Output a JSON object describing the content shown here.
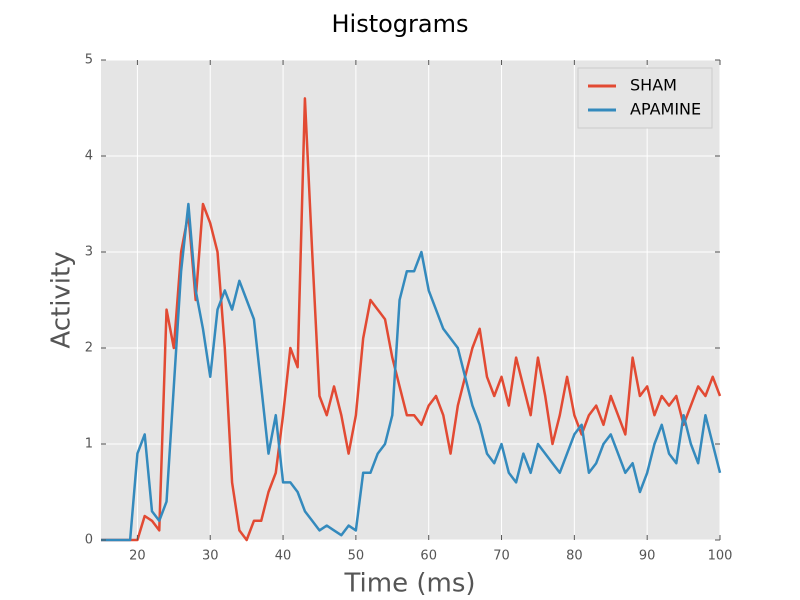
{
  "chart_data": {
    "type": "line",
    "title": "Histograms",
    "x_label": "Time (ms)",
    "y_label": "Activity",
    "x": [
      15,
      16,
      17,
      18,
      19,
      20,
      21,
      22,
      23,
      24,
      25,
      26,
      27,
      28,
      29,
      30,
      31,
      32,
      33,
      34,
      35,
      36,
      37,
      38,
      39,
      40,
      41,
      42,
      43,
      44,
      45,
      46,
      47,
      48,
      49,
      50,
      51,
      52,
      53,
      54,
      55,
      56,
      57,
      58,
      59,
      60,
      61,
      62,
      63,
      64,
      65,
      66,
      67,
      68,
      69,
      70,
      71,
      72,
      73,
      74,
      75,
      76,
      77,
      78,
      79,
      80,
      81,
      82,
      83,
      84,
      85,
      86,
      87,
      88,
      89,
      90,
      91,
      92,
      93,
      94,
      95,
      96,
      97,
      98,
      99,
      100
    ],
    "series": [
      {
        "name": "SHAM",
        "color": "#e24a33",
        "values": [
          0,
          0,
          0,
          0,
          0,
          0,
          0.25,
          0.2,
          0.1,
          2.4,
          2.0,
          3.0,
          3.4,
          2.5,
          3.5,
          3.3,
          3.0,
          2.0,
          0.6,
          0.1,
          0.0,
          0.2,
          0.2,
          0.5,
          0.7,
          1.3,
          2.0,
          1.8,
          4.6,
          3.0,
          1.5,
          1.3,
          1.6,
          1.3,
          0.9,
          1.3,
          2.1,
          2.5,
          2.4,
          2.3,
          1.9,
          1.6,
          1.3,
          1.3,
          1.2,
          1.4,
          1.5,
          1.3,
          0.9,
          1.4,
          1.7,
          2.0,
          2.2,
          1.7,
          1.5,
          1.7,
          1.4,
          1.9,
          1.6,
          1.3,
          1.9,
          1.5,
          1.0,
          1.3,
          1.7,
          1.3,
          1.1,
          1.3,
          1.4,
          1.2,
          1.5,
          1.3,
          1.1,
          1.9,
          1.5,
          1.6,
          1.3,
          1.5,
          1.4,
          1.5,
          1.2,
          1.4,
          1.6,
          1.5,
          1.7,
          1.5
        ]
      },
      {
        "name": "APAMINE",
        "color": "#348abd",
        "values": [
          0,
          0,
          0,
          0,
          0,
          0.9,
          1.1,
          0.3,
          0.2,
          0.4,
          1.6,
          2.8,
          3.5,
          2.6,
          2.2,
          1.7,
          2.4,
          2.6,
          2.4,
          2.7,
          2.5,
          2.3,
          1.6,
          0.9,
          1.3,
          0.6,
          0.6,
          0.5,
          0.3,
          0.2,
          0.1,
          0.15,
          0.1,
          0.05,
          0.15,
          0.1,
          0.7,
          0.7,
          0.9,
          1.0,
          1.3,
          2.5,
          2.8,
          2.8,
          3.0,
          2.6,
          2.4,
          2.2,
          2.1,
          2.0,
          1.7,
          1.4,
          1.2,
          0.9,
          0.8,
          1.0,
          0.7,
          0.6,
          0.9,
          0.7,
          1.0,
          0.9,
          0.8,
          0.7,
          0.9,
          1.1,
          1.2,
          0.7,
          0.8,
          1.0,
          1.1,
          0.9,
          0.7,
          0.8,
          0.5,
          0.7,
          1.0,
          1.2,
          0.9,
          0.8,
          1.3,
          1.0,
          0.8,
          1.3,
          1.0,
          0.7
        ]
      }
    ],
    "xlim": [
      15,
      100
    ],
    "xticks": [
      20,
      30,
      40,
      50,
      60,
      70,
      80,
      90,
      100
    ],
    "ylim": [
      0,
      5
    ],
    "yticks": [
      0,
      1,
      2,
      3,
      4,
      5
    ],
    "grid": true,
    "legend": "upper right"
  }
}
